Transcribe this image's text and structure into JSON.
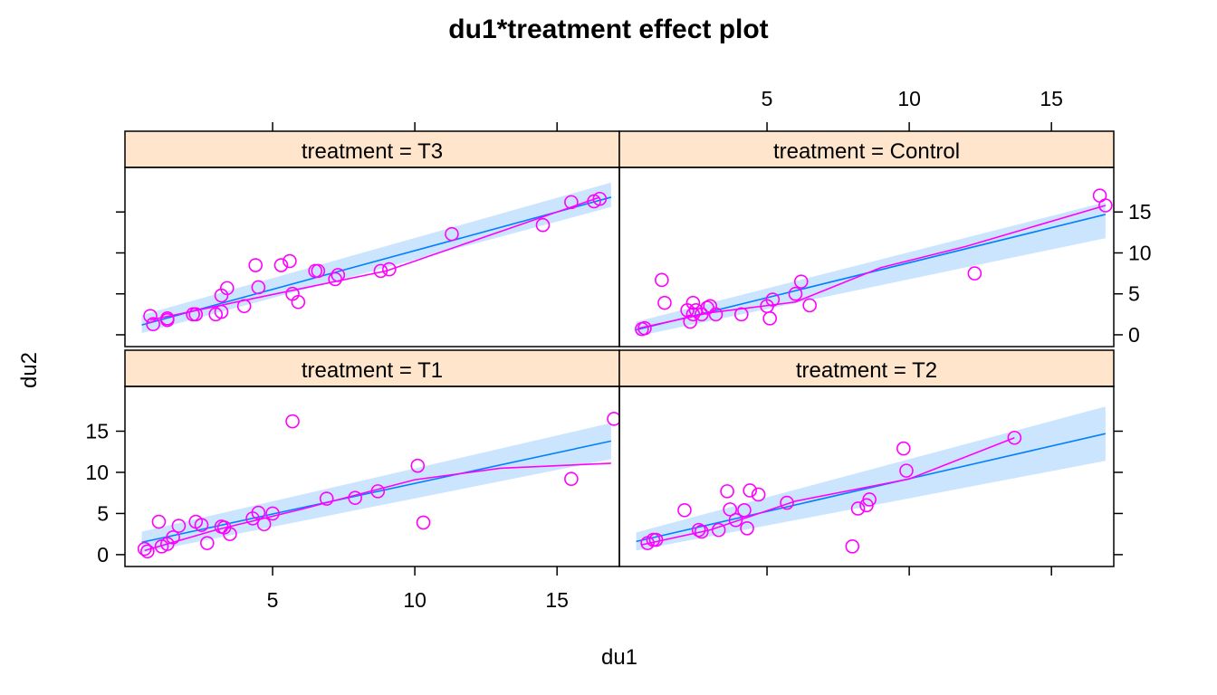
{
  "chart_data": {
    "type": "scatter",
    "title": "du1*treatment effect plot",
    "xlabel": "du1",
    "ylabel": "du2",
    "xlim": [
      0,
      17
    ],
    "ylim": [
      -1,
      20
    ],
    "x_ticks": [
      5,
      10,
      15
    ],
    "y_ticks": [
      0,
      5,
      10,
      15
    ],
    "strip_prefix": "treatment = ",
    "colors": {
      "points": "#FF00FF",
      "fit_line": "#0080FF",
      "ci_band": "#CCE5FF",
      "smooth_line": "#FF00FF",
      "strip_bg": "#FFE5CC"
    },
    "panels": [
      {
        "treatment": "T3",
        "fit": {
          "x": [
            0.4,
            16.9
          ],
          "y": [
            1.2,
            16.8
          ]
        },
        "ci": {
          "lower": [
            0.2,
            15.6
          ],
          "upper": [
            2.4,
            18.6
          ]
        },
        "smooth": {
          "x": [
            0.7,
            4,
            9,
            16.5
          ],
          "y": [
            1.8,
            4.2,
            7.8,
            16.8
          ]
        },
        "points": [
          [
            0.7,
            2.3
          ],
          [
            0.8,
            1.3
          ],
          [
            1.3,
            1.8
          ],
          [
            1.3,
            2.0
          ],
          [
            2.2,
            2.5
          ],
          [
            2.3,
            2.5
          ],
          [
            3.0,
            2.5
          ],
          [
            3.2,
            2.8
          ],
          [
            3.2,
            4.8
          ],
          [
            3.4,
            5.7
          ],
          [
            4.0,
            3.5
          ],
          [
            4.5,
            5.8
          ],
          [
            4.4,
            8.5
          ],
          [
            5.3,
            8.5
          ],
          [
            5.6,
            9.0
          ],
          [
            5.7,
            5.0
          ],
          [
            5.9,
            4.0
          ],
          [
            6.5,
            7.8
          ],
          [
            6.6,
            7.8
          ],
          [
            7.2,
            6.8
          ],
          [
            7.3,
            7.3
          ],
          [
            8.8,
            7.8
          ],
          [
            9.1,
            8.0
          ],
          [
            11.3,
            12.3
          ],
          [
            14.5,
            13.4
          ],
          [
            15.5,
            16.2
          ],
          [
            16.3,
            16.3
          ],
          [
            16.5,
            16.6
          ]
        ]
      },
      {
        "treatment": "Control",
        "fit": {
          "x": [
            0.4,
            16.9
          ],
          "y": [
            0.6,
            14.7
          ]
        },
        "ci": {
          "lower": [
            -0.2,
            11.8
          ],
          "upper": [
            1.6,
            16.2
          ]
        },
        "smooth": {
          "x": [
            0.5,
            3,
            6,
            9,
            12,
            16.9
          ],
          "y": [
            0.8,
            2.7,
            4.0,
            8.2,
            10.8,
            15.8
          ]
        },
        "points": [
          [
            0.6,
            0.7
          ],
          [
            0.7,
            0.8
          ],
          [
            1.3,
            6.7
          ],
          [
            1.4,
            3.9
          ],
          [
            2.2,
            3.0
          ],
          [
            2.3,
            1.6
          ],
          [
            2.4,
            2.5
          ],
          [
            2.4,
            3.9
          ],
          [
            2.5,
            3.0
          ],
          [
            2.7,
            2.5
          ],
          [
            2.9,
            3.3
          ],
          [
            3.0,
            3.5
          ],
          [
            3.2,
            2.5
          ],
          [
            4.1,
            2.5
          ],
          [
            5.0,
            3.5
          ],
          [
            5.2,
            4.3
          ],
          [
            5.1,
            2.0
          ],
          [
            6.0,
            5.0
          ],
          [
            6.2,
            6.5
          ],
          [
            6.5,
            3.6
          ],
          [
            12.3,
            7.5
          ],
          [
            16.7,
            17.0
          ],
          [
            16.9,
            15.8
          ]
        ]
      },
      {
        "treatment": "T1",
        "fit": {
          "x": [
            0.4,
            16.9
          ],
          "y": [
            1.5,
            13.8
          ]
        },
        "ci": {
          "lower": [
            0.2,
            11.6
          ],
          "upper": [
            2.8,
            16.0
          ]
        },
        "smooth": {
          "x": [
            0.5,
            3,
            6,
            10,
            13,
            16.9
          ],
          "y": [
            0.5,
            3.0,
            5.5,
            9.1,
            10.5,
            11.1
          ]
        },
        "points": [
          [
            0.5,
            0.7
          ],
          [
            0.6,
            0.4
          ],
          [
            1.0,
            4.0
          ],
          [
            1.1,
            1.0
          ],
          [
            1.3,
            1.3
          ],
          [
            1.5,
            2.1
          ],
          [
            1.7,
            3.5
          ],
          [
            2.3,
            4.0
          ],
          [
            2.5,
            3.6
          ],
          [
            2.7,
            1.4
          ],
          [
            3.3,
            3.3
          ],
          [
            3.2,
            3.4
          ],
          [
            3.5,
            2.5
          ],
          [
            4.3,
            4.4
          ],
          [
            4.5,
            5.1
          ],
          [
            4.7,
            3.7
          ],
          [
            5.0,
            5.0
          ],
          [
            5.7,
            16.2
          ],
          [
            6.9,
            6.8
          ],
          [
            7.9,
            6.9
          ],
          [
            8.7,
            7.7
          ],
          [
            10.1,
            10.8
          ],
          [
            10.3,
            3.9
          ],
          [
            15.5,
            9.2
          ],
          [
            17.0,
            16.5
          ]
        ]
      },
      {
        "treatment": "T2",
        "fit": {
          "x": [
            0.4,
            16.9
          ],
          "y": [
            1.6,
            14.7
          ]
        },
        "ci": {
          "lower": [
            0.5,
            11.4
          ],
          "upper": [
            2.7,
            18.0
          ]
        },
        "smooth": {
          "x": [
            0.6,
            3,
            6,
            10,
            13.7
          ],
          "y": [
            1.2,
            3.0,
            6.5,
            9.2,
            14.2
          ]
        },
        "points": [
          [
            0.8,
            1.4
          ],
          [
            1.0,
            1.8
          ],
          [
            1.1,
            1.8
          ],
          [
            2.1,
            5.4
          ],
          [
            2.6,
            3.0
          ],
          [
            2.7,
            2.8
          ],
          [
            3.3,
            3.0
          ],
          [
            3.6,
            7.7
          ],
          [
            3.7,
            5.5
          ],
          [
            3.9,
            4.2
          ],
          [
            4.2,
            5.4
          ],
          [
            4.3,
            3.2
          ],
          [
            4.4,
            7.8
          ],
          [
            4.7,
            7.3
          ],
          [
            5.7,
            6.3
          ],
          [
            8.2,
            5.6
          ],
          [
            8.5,
            6.0
          ],
          [
            8.6,
            6.7
          ],
          [
            8.0,
            1.0
          ],
          [
            9.8,
            12.9
          ],
          [
            9.9,
            10.2
          ],
          [
            13.7,
            14.2
          ]
        ]
      }
    ]
  }
}
